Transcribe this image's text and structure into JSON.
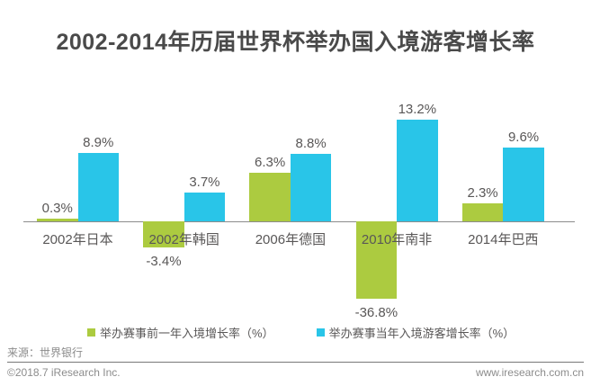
{
  "title": "2002-2014年历届世界杯举办国入境游客增长率",
  "chart_data": {
    "type": "bar",
    "title": "2002-2014年历届世界杯举办国入境游客增长率",
    "categories": [
      "2002年日本",
      "2002年韩国",
      "2006年德国",
      "2010年南非",
      "2014年巴西"
    ],
    "series": [
      {
        "name": "举办赛事前一年入境增长率（%）",
        "color": "#accb40",
        "values": [
          0.3,
          -3.4,
          6.3,
          -36.8,
          2.3
        ],
        "labels": [
          "0.3%",
          "-3.4%",
          "6.3%",
          "-36.8%",
          "2.3%"
        ]
      },
      {
        "name": "举办赛事当年入境游客增长率（%）",
        "color": "#29c5e8",
        "values": [
          8.9,
          3.7,
          8.8,
          13.2,
          9.6
        ],
        "labels": [
          "8.9%",
          "3.7%",
          "8.8%",
          "13.2%",
          "9.6%"
        ]
      }
    ],
    "xlabel": "",
    "ylabel": "",
    "legend_position": "bottom",
    "grid": false,
    "axis_baseline_value": 0,
    "note": "the -36.8% bar is drawn clipped (shorter than true scale) in the original"
  },
  "colors": {
    "series_prev_year_green": "#accb40",
    "series_event_year_blue": "#29c5e8",
    "title_text": "#4a4a4a",
    "label_text": "#595757",
    "footer_text": "#8c8c8c",
    "axis_line": "#8c8c8c"
  },
  "footer": {
    "source": "来源：世界银行",
    "copyright": "©2018.7 iResearch Inc.",
    "website": "www.iresearch.com.cn"
  }
}
